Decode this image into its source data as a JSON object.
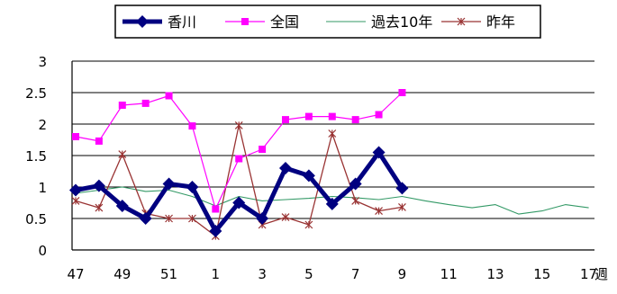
{
  "chart_data": {
    "type": "line",
    "categories": [
      "47",
      "48",
      "49",
      "50",
      "51",
      "52",
      "1",
      "2",
      "3",
      "4",
      "5",
      "6",
      "7",
      "8",
      "9",
      "10",
      "11",
      "12",
      "13",
      "14",
      "15",
      "16",
      "17"
    ],
    "x_tick_labels": [
      "47",
      "49",
      "51",
      "1",
      "3",
      "5",
      "7",
      "9",
      "11",
      "13",
      "15",
      "17"
    ],
    "x_unit_label": "週",
    "ylim": [
      0,
      3
    ],
    "yticks": [
      "0",
      "0.5",
      "1",
      "1.5",
      "2",
      "2.5",
      "3"
    ],
    "grid": true,
    "legend_position": "top",
    "series": [
      {
        "name": "香川",
        "color": "#000080",
        "marker": "diamond",
        "values": [
          0.95,
          1.02,
          0.7,
          0.5,
          1.05,
          1.0,
          0.3,
          0.75,
          0.5,
          1.3,
          1.18,
          0.73,
          1.05,
          1.55,
          0.98,
          null,
          null,
          null,
          null,
          null,
          null,
          null,
          null
        ]
      },
      {
        "name": "全国",
        "color": "#ff00ff",
        "marker": "square",
        "values": [
          1.8,
          1.73,
          2.3,
          2.33,
          2.45,
          1.97,
          0.65,
          1.45,
          1.6,
          2.07,
          2.12,
          2.12,
          2.07,
          2.15,
          2.5,
          null,
          null,
          null,
          null,
          null,
          null,
          null,
          null
        ]
      },
      {
        "name": "過去10年",
        "color": "#339966",
        "marker": "none",
        "values": [
          0.9,
          0.95,
          1.0,
          0.93,
          0.95,
          0.85,
          0.7,
          0.85,
          0.78,
          0.8,
          0.82,
          0.85,
          0.83,
          0.8,
          0.85,
          0.78,
          0.72,
          0.67,
          0.72,
          0.57,
          0.62,
          0.72,
          0.67
        ]
      },
      {
        "name": "昨年",
        "color": "#993333",
        "marker": "x",
        "values": [
          0.78,
          0.67,
          1.52,
          0.58,
          0.5,
          0.5,
          0.22,
          1.98,
          0.4,
          0.52,
          0.4,
          1.85,
          0.78,
          0.62,
          0.68,
          null,
          null,
          null,
          null,
          null,
          null,
          null,
          null
        ]
      }
    ]
  }
}
